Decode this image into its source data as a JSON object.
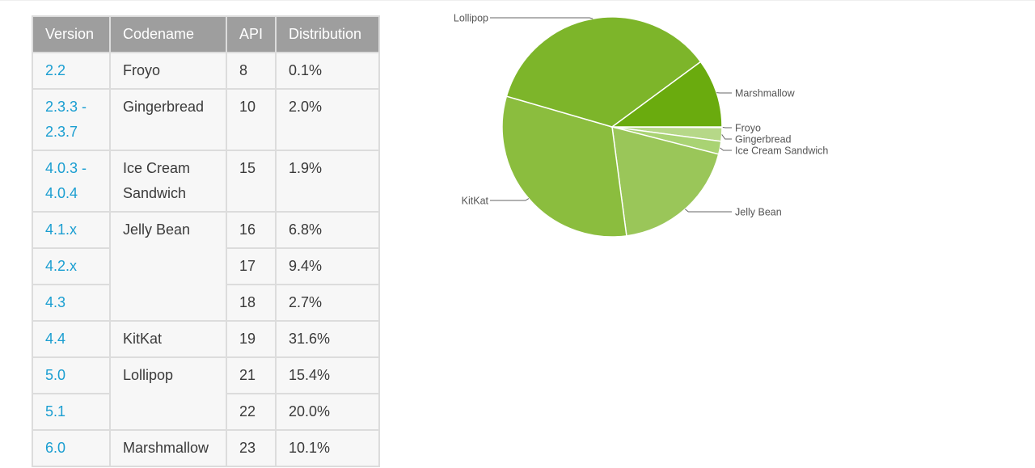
{
  "table": {
    "headers": [
      "Version",
      "Codename",
      "API",
      "Distribution"
    ],
    "rows": [
      {
        "version": "2.2",
        "codename": "Froyo",
        "api": "8",
        "distribution": "0.1%"
      },
      {
        "version": "2.3.3 - 2.3.7",
        "codename": "Gingerbread",
        "api": "10",
        "distribution": "2.0%"
      },
      {
        "version": "4.0.3 - 4.0.4",
        "codename": "Ice Cream Sandwich",
        "api": "15",
        "distribution": "1.9%"
      },
      {
        "version": "4.1.x",
        "codename": "Jelly Bean",
        "api": "16",
        "distribution": "6.8%"
      },
      {
        "version": "4.2.x",
        "codename": "",
        "api": "17",
        "distribution": "9.4%"
      },
      {
        "version": "4.3",
        "codename": "",
        "api": "18",
        "distribution": "2.7%"
      },
      {
        "version": "4.4",
        "codename": "KitKat",
        "api": "19",
        "distribution": "31.6%"
      },
      {
        "version": "5.0",
        "codename": "Lollipop",
        "api": "21",
        "distribution": "15.4%"
      },
      {
        "version": "5.1",
        "codename": "",
        "api": "22",
        "distribution": "20.0%"
      },
      {
        "version": "6.0",
        "codename": "Marshmallow",
        "api": "23",
        "distribution": "10.1%"
      }
    ]
  },
  "chart_data": {
    "type": "pie",
    "categories": [
      "Froyo",
      "Gingerbread",
      "Ice Cream Sandwich",
      "Jelly Bean",
      "KitKat",
      "Lollipop",
      "Marshmallow"
    ],
    "values": [
      0.1,
      2.0,
      1.9,
      18.9,
      31.6,
      35.4,
      10.1
    ],
    "colors": [
      "#c6df9c",
      "#b6d888",
      "#a9d373",
      "#9ac659",
      "#8bbd3e",
      "#7db52a",
      "#6aab0e"
    ],
    "legend": "callout labels"
  }
}
